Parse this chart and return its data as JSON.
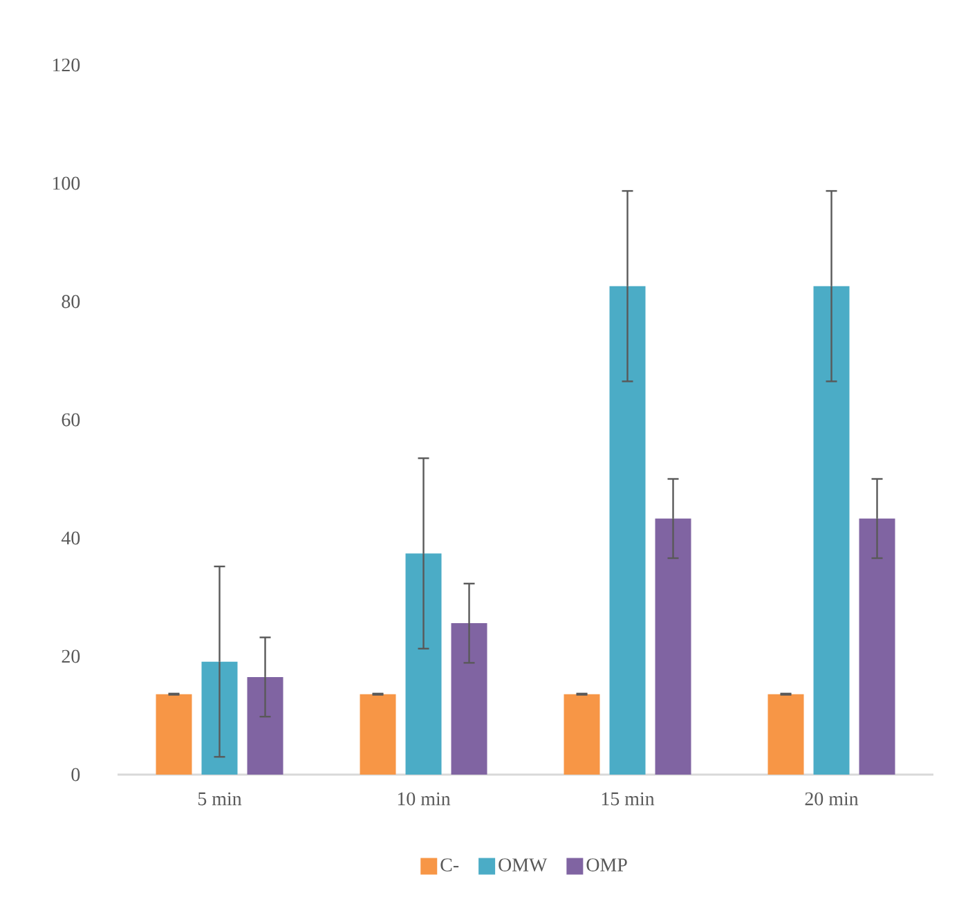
{
  "chart_data": {
    "type": "bar",
    "categories": [
      "5 min",
      "10 min",
      "15 min",
      "20 min"
    ],
    "series": [
      {
        "name": "C-",
        "color": "#f79646",
        "values": [
          13.6,
          13.6,
          13.6,
          13.6
        ],
        "errors": [
          0.1,
          0.1,
          0.1,
          0.1
        ]
      },
      {
        "name": "OMW",
        "color": "#4bacc6",
        "values": [
          19.1,
          37.4,
          82.6,
          82.6
        ],
        "errors": [
          16.1,
          16.1,
          16.1,
          16.1
        ]
      },
      {
        "name": "OMP",
        "color": "#8064a2",
        "values": [
          16.5,
          25.6,
          43.3,
          43.3
        ],
        "errors": [
          6.7,
          6.7,
          6.7,
          6.7
        ]
      }
    ],
    "ylim": [
      0,
      120
    ],
    "yticks": [
      0,
      20,
      40,
      60,
      80,
      100,
      120
    ],
    "legend": "bottom"
  }
}
